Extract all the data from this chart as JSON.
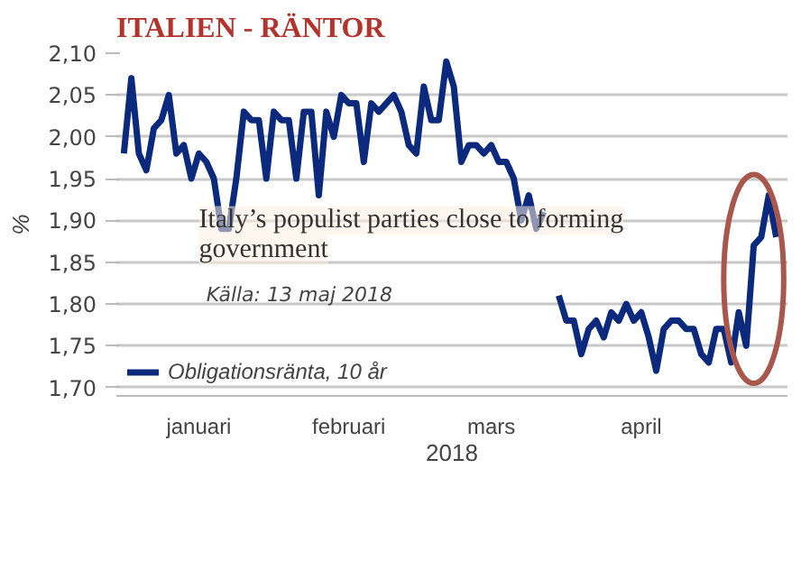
{
  "chart_data": {
    "type": "line",
    "title": "ITALIEN - RÄNTOR",
    "xlabel": "2018",
    "ylabel": "%",
    "categories": [
      null,
      null,
      null,
      null,
      null,
      null,
      null,
      null,
      null,
      null,
      "januari",
      null,
      null,
      null,
      null,
      null,
      null,
      null,
      null,
      null,
      null,
      null,
      null,
      null,
      null,
      null,
      null,
      null,
      null,
      null,
      "februari",
      null,
      null,
      null,
      null,
      null,
      null,
      null,
      null,
      null,
      null,
      null,
      null,
      null,
      null,
      null,
      null,
      null,
      null,
      "mars",
      null,
      null,
      null,
      null,
      null,
      null,
      null,
      null,
      null,
      null,
      null,
      null,
      null,
      null,
      null,
      null,
      null,
      null,
      null,
      "april",
      null,
      null,
      null,
      null,
      null,
      null,
      null,
      null,
      null,
      null,
      null,
      null,
      null,
      null,
      null,
      null,
      null,
      null
    ],
    "series": [
      {
        "name": "Obligationsränta, 10 år",
        "color": "#0b2a7d",
        "values": [
          1.98,
          2.07,
          1.98,
          1.96,
          2.01,
          2.02,
          2.05,
          1.98,
          1.99,
          1.95,
          1.98,
          1.97,
          1.95,
          1.89,
          1.89,
          1.95,
          2.03,
          2.02,
          2.02,
          1.95,
          2.03,
          2.02,
          2.02,
          1.95,
          2.03,
          2.03,
          1.93,
          2.03,
          2.0,
          2.05,
          2.04,
          2.04,
          1.97,
          2.04,
          2.03,
          2.04,
          2.05,
          2.03,
          1.99,
          1.98,
          2.06,
          2.02,
          2.02,
          2.09,
          2.06,
          1.97,
          1.99,
          1.99,
          1.98,
          1.99,
          1.97,
          1.97,
          1.95,
          1.9,
          1.93,
          1.89,
          1.91,
          null,
          1.81,
          1.78,
          1.78,
          1.74,
          1.77,
          1.78,
          1.76,
          1.79,
          1.78,
          1.8,
          1.78,
          1.79,
          1.76,
          1.72,
          1.77,
          1.78,
          1.78,
          1.77,
          1.77,
          1.74,
          1.73,
          1.77,
          1.77,
          1.73,
          1.79,
          1.75,
          1.87,
          1.88,
          1.93,
          1.88
        ]
      }
    ],
    "ylim": [
      1.69,
      2.1
    ],
    "yticks": [
      {
        "value": 1.7,
        "label": "1,70"
      },
      {
        "value": 1.75,
        "label": "1,75"
      },
      {
        "value": 1.8,
        "label": "1,80"
      },
      {
        "value": 1.85,
        "label": "1,85"
      },
      {
        "value": 1.9,
        "label": "1,90"
      },
      {
        "value": 1.95,
        "label": "1,95"
      },
      {
        "value": 2.0,
        "label": "2,00"
      },
      {
        "value": 2.05,
        "label": "2,05"
      },
      {
        "value": 2.1,
        "label": "2,10"
      }
    ],
    "grid": "y",
    "legend": "bottom left",
    "marker": "none",
    "line_style": "solid",
    "annotations": [
      "Italy’s populist parties close to forming government",
      "Källa: 13 maj 2018"
    ]
  }
}
